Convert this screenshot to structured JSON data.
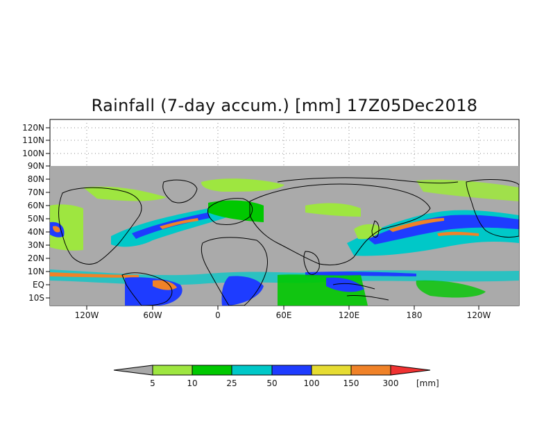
{
  "map": {
    "title": "Rainfall (7-day accum.) [mm] 17Z05Dec2018",
    "lat_ticks": [
      "120N",
      "110N",
      "100N",
      "90N",
      "80N",
      "70N",
      "60N",
      "50N",
      "40N",
      "30N",
      "20N",
      "10N",
      "EQ",
      "10S"
    ],
    "lon_ticks": [
      "120W",
      "60W",
      "0",
      "60E",
      "120E",
      "180",
      "120W"
    ]
  },
  "colorbar": {
    "units": "[mm]",
    "levels": [
      "5",
      "10",
      "25",
      "50",
      "100",
      "150",
      "300"
    ],
    "colors": [
      "#a8a8a8",
      "#9ee640",
      "#00c800",
      "#00c8c8",
      "#1e3cff",
      "#e6dc32",
      "#f08228",
      "#f03232"
    ]
  },
  "colors": {
    "background": "#ffffff",
    "no_data": "#aaaaaa",
    "coastline": "#000000"
  }
}
